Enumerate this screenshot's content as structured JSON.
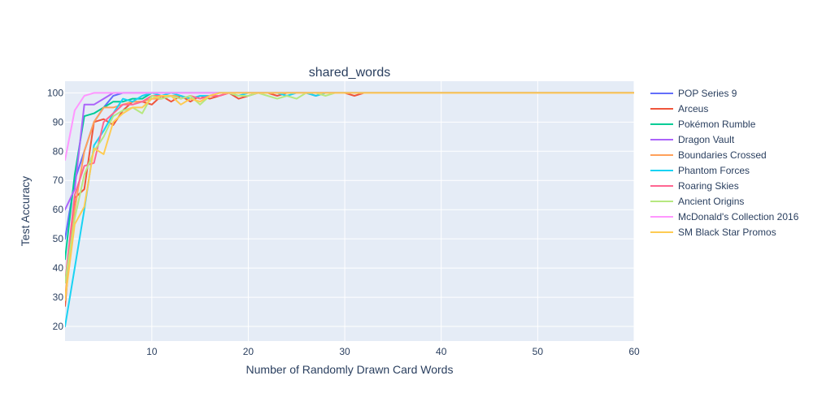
{
  "chart_data": {
    "type": "line",
    "title": "shared_words",
    "xlabel": "Number of Randomly Drawn Card Words",
    "ylabel": "Test Accuracy",
    "xlim": [
      1,
      60
    ],
    "ylim": [
      15,
      104
    ],
    "xticks": [
      10,
      20,
      30,
      40,
      50,
      60
    ],
    "yticks": [
      20,
      30,
      40,
      50,
      60,
      70,
      80,
      90,
      100
    ],
    "grid": true,
    "legend_position": "right",
    "colors": [
      "#636efa",
      "#EF553B",
      "#00cc96",
      "#ab63fa",
      "#FFA15A",
      "#19d3f3",
      "#FF6692",
      "#B6E880",
      "#FF97FF",
      "#FECB52"
    ],
    "series": [
      {
        "name": "POP Series 9",
        "x": [
          1,
          2,
          3,
          4,
          5,
          6,
          7,
          8,
          9,
          10,
          60
        ],
        "y": [
          50,
          70,
          80,
          90,
          95,
          99,
          100,
          100,
          100,
          100,
          100
        ]
      },
      {
        "name": "Arceus",
        "x": [
          1,
          2,
          3,
          4,
          5,
          6,
          7,
          8,
          9,
          10,
          11,
          12,
          13,
          14,
          15,
          16,
          17,
          18,
          19,
          20,
          21,
          22,
          23,
          24,
          25,
          26,
          27,
          28,
          29,
          30,
          31,
          32,
          33,
          60
        ],
        "y": [
          27,
          64,
          67,
          90,
          91,
          89,
          94,
          97,
          97,
          96,
          99,
          97,
          99,
          97,
          99,
          98,
          99,
          100,
          98,
          99,
          100,
          100,
          99,
          100,
          100,
          100,
          99,
          100,
          100,
          100,
          99,
          100,
          100,
          100
        ]
      },
      {
        "name": "Pokémon Rumble",
        "x": [
          1,
          2,
          3,
          4,
          5,
          6,
          7,
          8,
          9,
          10,
          60
        ],
        "y": [
          43,
          72,
          92,
          93,
          95,
          97,
          97,
          98,
          98,
          100,
          100
        ]
      },
      {
        "name": "Dragon Vault",
        "x": [
          1,
          2,
          3,
          4,
          5,
          6,
          7,
          8,
          9,
          10,
          60
        ],
        "y": [
          60,
          67,
          96,
          96,
          98,
          100,
          100,
          100,
          100,
          100,
          100
        ]
      },
      {
        "name": "Boundaries Crossed",
        "x": [
          1,
          2,
          3,
          4,
          5,
          6,
          7,
          8,
          9,
          10,
          11,
          12,
          13,
          14,
          15,
          16,
          17,
          18,
          60
        ],
        "y": [
          30,
          60,
          80,
          90,
          95,
          95,
          96,
          97,
          97,
          98,
          98,
          99,
          99,
          98,
          97,
          99,
          100,
          100,
          100
        ]
      },
      {
        "name": "Phantom Forces",
        "x": [
          1,
          2,
          3,
          4,
          5,
          6,
          7,
          8,
          9,
          10,
          11,
          12,
          13,
          14,
          15,
          16,
          17,
          18,
          19,
          20,
          21,
          22,
          23,
          24,
          25,
          26,
          27,
          28,
          29,
          30,
          60
        ],
        "y": [
          20,
          40,
          60,
          82,
          87,
          93,
          98,
          97,
          99,
          100,
          99,
          100,
          99,
          98,
          99,
          99,
          100,
          100,
          99,
          100,
          100,
          100,
          100,
          99,
          100,
          100,
          99,
          100,
          100,
          100,
          100
        ]
      },
      {
        "name": "Roaring Skies",
        "x": [
          1,
          2,
          3,
          4,
          5,
          6,
          7,
          8,
          9,
          10,
          11,
          12,
          13,
          14,
          15,
          16,
          17,
          18,
          60
        ],
        "y": [
          35,
          65,
          75,
          76,
          90,
          93,
          96,
          96,
          97,
          99,
          99,
          99,
          98,
          99,
          98,
          99,
          99,
          100,
          100
        ]
      },
      {
        "name": "Ancient Origins",
        "x": [
          1,
          2,
          3,
          4,
          5,
          6,
          7,
          8,
          9,
          10,
          11,
          12,
          13,
          14,
          15,
          16,
          17,
          18,
          19,
          20,
          21,
          22,
          23,
          24,
          25,
          26,
          27,
          28,
          29,
          30,
          60
        ],
        "y": [
          35,
          57,
          72,
          80,
          85,
          92,
          94,
          95,
          93,
          99,
          98,
          99,
          98,
          99,
          96,
          99,
          100,
          100,
          99,
          99,
          100,
          99,
          98,
          99,
          98,
          100,
          100,
          99,
          100,
          100,
          100
        ]
      },
      {
        "name": "McDonald's Collection 2016",
        "x": [
          1,
          2,
          3,
          4,
          5,
          6,
          60
        ],
        "y": [
          77,
          94,
          99,
          100,
          100,
          100,
          100
        ]
      },
      {
        "name": "SM Black Star Promos",
        "x": [
          1,
          2,
          3,
          4,
          5,
          6,
          7,
          8,
          9,
          10,
          11,
          12,
          13,
          14,
          15,
          16,
          17,
          18,
          60
        ],
        "y": [
          29,
          55,
          61,
          81,
          79,
          90,
          93,
          95,
          95,
          98,
          99,
          99,
          96,
          98,
          97,
          99,
          100,
          100,
          100
        ]
      }
    ]
  }
}
